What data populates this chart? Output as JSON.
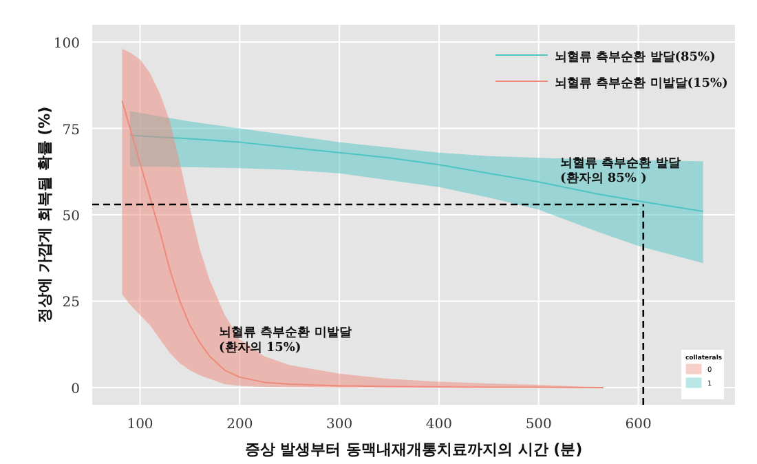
{
  "chart_data": {
    "type": "line",
    "xlabel": "증상 발생부터 동맥내재개통치료까지의 시간 (분)",
    "ylabel": "정상에 가깝게 회복될 확률 (%)",
    "xlim": [
      52,
      697
    ],
    "ylim": [
      -5,
      105
    ],
    "xticks": [
      100,
      200,
      300,
      400,
      500,
      600
    ],
    "yticks": [
      0,
      25,
      50,
      75,
      100
    ],
    "grid": true,
    "legend": "top right",
    "legend_title": "collaterals",
    "line_style": "solid",
    "series": [
      {
        "name": "뇌혈류 측부순환 발달(85%)",
        "color": "#4fc4c4",
        "x": [
          90,
          150,
          200,
          250,
          300,
          350,
          400,
          450,
          500,
          560,
          600,
          665
        ],
        "values": [
          73,
          72,
          71,
          69.5,
          68,
          66.5,
          64.5,
          62,
          59.5,
          56,
          54,
          51
        ],
        "lower": [
          64,
          63.8,
          63.5,
          63,
          62,
          60,
          58,
          55,
          51.5,
          45,
          41,
          36
        ],
        "upper": [
          80,
          77,
          75,
          73,
          71,
          69.5,
          68,
          67,
          66.5,
          66,
          65.8,
          65.5
        ]
      },
      {
        "name": "뇌혈류 측부순환 미발달(15%)",
        "color": "#ee8a7a",
        "x": [
          82,
          90,
          100,
          110,
          120,
          130,
          140,
          150,
          160,
          170,
          185,
          200,
          225,
          250,
          300,
          350,
          400,
          450,
          500,
          565
        ],
        "values": [
          83,
          75,
          65,
          55,
          45,
          34,
          25,
          18,
          13,
          9,
          5,
          3,
          1.5,
          1,
          0.5,
          0.3,
          0.2,
          0.1,
          0.1,
          0
        ],
        "lower": [
          27,
          24,
          21,
          18,
          14,
          10,
          7,
          5,
          3.5,
          2.5,
          1,
          0.5,
          0.2,
          0.1,
          0,
          0,
          0,
          0,
          0,
          0
        ],
        "upper": [
          98,
          97,
          95,
          91,
          85,
          77,
          65,
          52,
          40,
          31,
          21,
          14,
          9,
          6.5,
          4,
          2.5,
          1.7,
          1.2,
          0.8,
          0
        ]
      }
    ],
    "ref_lines": [
      {
        "axis": "y",
        "value": 53,
        "color": "#000000",
        "line_style": "dashed"
      },
      {
        "axis": "x",
        "value": 605,
        "color": "#000000",
        "line_style": "dashed"
      }
    ],
    "annotations": [
      "뇌혈류 측부순환 발달\n(환자의 85% )",
      "뇌혈류 측부순환 미발달\n(환자의 15%)",
      "0",
      "1"
    ]
  }
}
